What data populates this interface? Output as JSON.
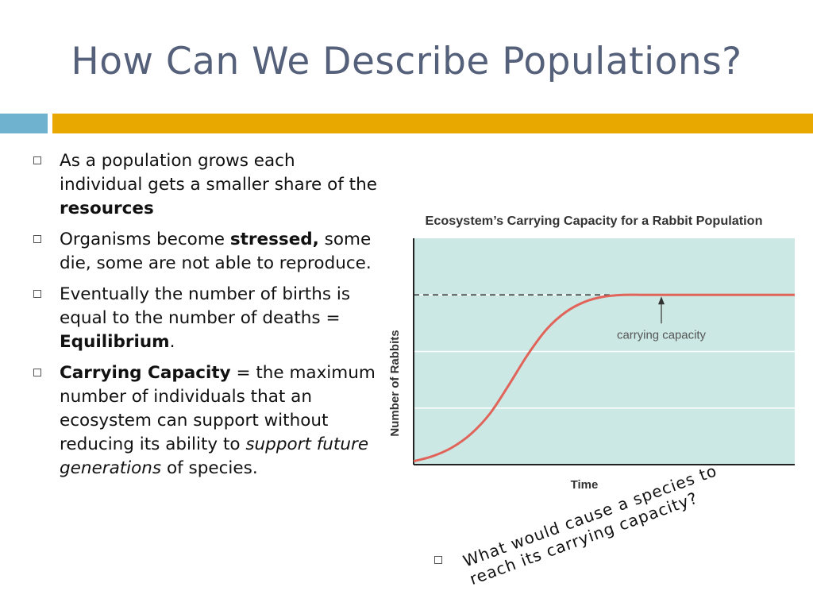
{
  "slide": {
    "title": "How Can We Describe Populations?",
    "accent_colors": {
      "blue": "#6fb2cf",
      "gold": "#e8a800",
      "title": "#55607a"
    }
  },
  "bullets": [
    {
      "parts": [
        {
          "text": "As a population grows each individual gets a smaller share of the ",
          "style": "normal"
        },
        {
          "text": "resources",
          "style": "bold"
        }
      ]
    },
    {
      "parts": [
        {
          "text": "Organisms become ",
          "style": "normal"
        },
        {
          "text": "stressed,",
          "style": "bold"
        },
        {
          "text": " some die, some are not able to reproduce.",
          "style": "normal"
        }
      ]
    },
    {
      "parts": [
        {
          "text": "Eventually the number of births is equal to the number of deaths = ",
          "style": "normal"
        },
        {
          "text": "Equilibrium",
          "style": "bold"
        },
        {
          "text": ".",
          "style": "normal"
        }
      ]
    },
    {
      "parts": [
        {
          "text": "Carrying Capacity",
          "style": "bold"
        },
        {
          "text": " = the maximum number of individuals that an ecosystem can support without reducing its ability to ",
          "style": "normal"
        },
        {
          "text": "support future generations",
          "style": "italic"
        },
        {
          "text": " of species.",
          "style": "normal"
        }
      ]
    }
  ],
  "chart_data": {
    "type": "line",
    "title": "Ecosystem’s Carrying Capacity for a Rabbit Population",
    "xlabel": "Time",
    "ylabel": "Number of Rabbits",
    "grid": true,
    "plot_bg": "#cce8e5",
    "line_color": "#e0645a",
    "annotation": "carrying capacity",
    "series": [
      {
        "x": [
          0,
          0.05,
          0.1,
          0.15,
          0.2,
          0.25,
          0.3,
          0.35,
          0.4,
          0.45,
          0.5,
          0.55,
          0.6,
          0.65,
          0.7,
          1.0
        ],
        "y": [
          0.02,
          0.05,
          0.1,
          0.18,
          0.3,
          0.47,
          0.65,
          0.8,
          0.9,
          0.96,
          0.99,
          1.0,
          1.0,
          1.0,
          1.0,
          1.0
        ]
      }
    ],
    "capacity_level": 1.0
  },
  "question": "What would cause a species to reach its carrying capacity?"
}
